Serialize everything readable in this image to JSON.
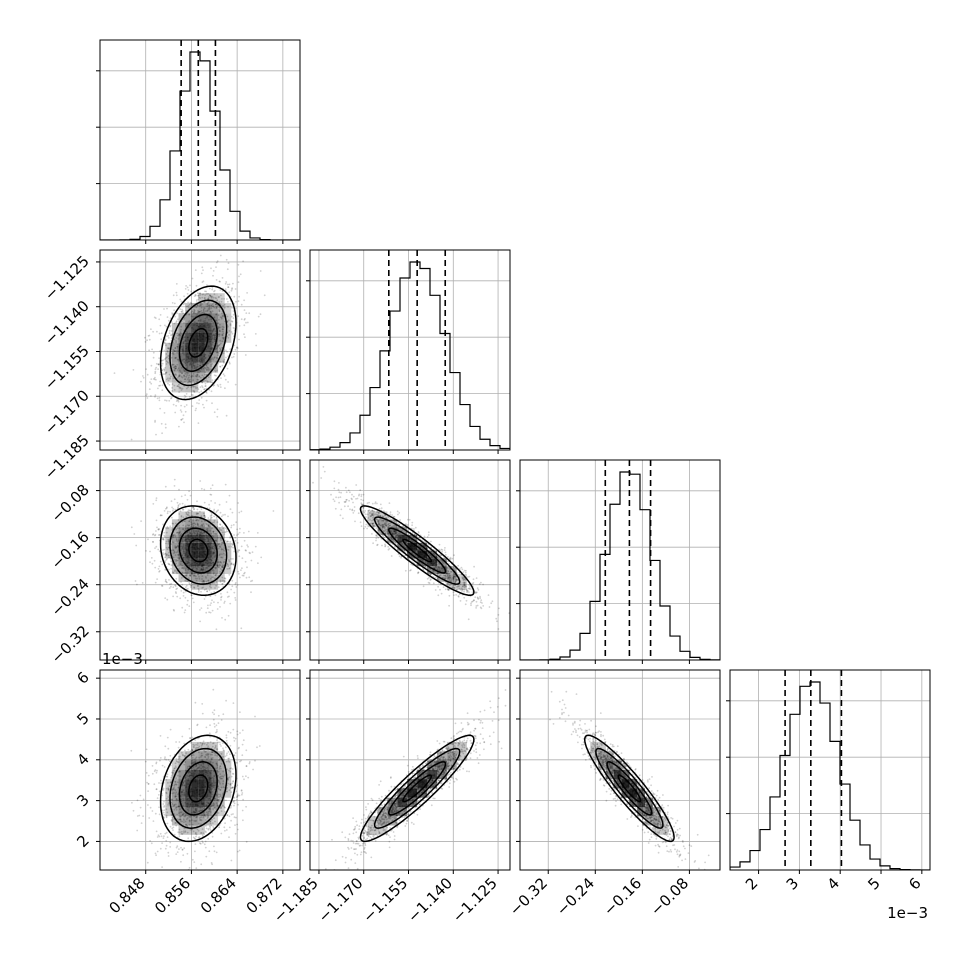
{
  "chart_data": {
    "type": "corner",
    "description_params": 4,
    "params": [
      {
        "range": [
          0.84,
          0.875
        ],
        "ticks": [
          0.848,
          0.856,
          0.864,
          0.872
        ],
        "tick_labels": [
          "0.848",
          "0.856",
          "0.864",
          "0.872"
        ],
        "quantiles": [
          0.8542,
          0.8572,
          0.8602
        ],
        "mean": 0.8572,
        "sd": 0.0033
      },
      {
        "range": [
          -1.188,
          -1.121
        ],
        "ticks": [
          -1.185,
          -1.17,
          -1.155,
          -1.14,
          -1.125
        ],
        "tick_labels": [
          "−1.185",
          "−1.170",
          "−1.155",
          "−1.140",
          "−1.125"
        ],
        "quantiles": [
          -1.1616,
          -1.1521,
          -1.1427
        ],
        "mean": -1.1521,
        "sd": 0.0095
      },
      {
        "range": [
          -0.368,
          -0.028
        ],
        "ticks": [
          -0.32,
          -0.24,
          -0.16,
          -0.08
        ],
        "tick_labels": [
          "−0.32",
          "−0.24",
          "−0.16",
          "−0.08"
        ],
        "quantiles": [
          -0.223,
          -0.182,
          -0.146
        ],
        "mean": -0.182,
        "sd": 0.038
      },
      {
        "range": [
          1.3,
          6.2
        ],
        "ticks": [
          2,
          3,
          4,
          5,
          6
        ],
        "tick_labels": [
          "2",
          "3",
          "4",
          "5",
          "6"
        ],
        "quantiles": [
          2.65,
          3.28,
          4.03
        ],
        "mean": 3.3,
        "sd": 0.65,
        "offset_label": "1e−3"
      }
    ],
    "correlations": [
      [
        1,
        0.35,
        -0.15,
        0.25
      ],
      [
        0.35,
        1,
        -0.93,
        0.92
      ],
      [
        -0.15,
        -0.93,
        1,
        -0.92
      ],
      [
        0.25,
        0.92,
        -0.92,
        1
      ]
    ],
    "histogram_bins": 20,
    "quantile_levels": [
      0.16,
      0.5,
      0.84
    ],
    "grid": true
  }
}
